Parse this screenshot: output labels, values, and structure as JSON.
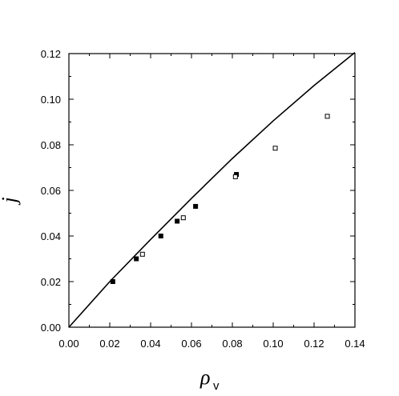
{
  "chart_data": {
    "type": "scatter",
    "title": "",
    "xlabel": "ρ",
    "xlabel_subscript": "v",
    "ylabel": "j",
    "xlim": [
      0.0,
      0.14
    ],
    "ylim": [
      0.0,
      0.12
    ],
    "x_ticks": [
      "0.00",
      "0.02",
      "0.04",
      "0.06",
      "0.08",
      "0.10",
      "0.12",
      "0.14"
    ],
    "y_ticks": [
      "0.00",
      "0.02",
      "0.04",
      "0.06",
      "0.08",
      "0.10",
      "0.12"
    ],
    "x_tick_values": [
      0.0,
      0.02,
      0.04,
      0.06,
      0.08,
      0.1,
      0.12,
      0.14
    ],
    "y_tick_values": [
      0.0,
      0.02,
      0.04,
      0.06,
      0.08,
      0.1,
      0.12
    ],
    "grid": false,
    "legend": "none",
    "series": [
      {
        "marker": "filled-square",
        "color": "#000000",
        "points": [
          {
            "x": 0.0215,
            "y": 0.02
          },
          {
            "x": 0.033,
            "y": 0.03
          },
          {
            "x": 0.045,
            "y": 0.04
          },
          {
            "x": 0.053,
            "y": 0.0465
          },
          {
            "x": 0.062,
            "y": 0.053
          },
          {
            "x": 0.082,
            "y": 0.067
          }
        ]
      },
      {
        "marker": "open-square",
        "color": "#000000",
        "points": [
          {
            "x": 0.036,
            "y": 0.032
          },
          {
            "x": 0.056,
            "y": 0.048
          },
          {
            "x": 0.0815,
            "y": 0.066
          },
          {
            "x": 0.101,
            "y": 0.0785
          },
          {
            "x": 0.1265,
            "y": 0.0925
          }
        ]
      },
      {
        "marker": "line",
        "color": "#000000",
        "points": [
          {
            "x": 0.0,
            "y": 0.0
          },
          {
            "x": 0.02,
            "y": 0.02
          },
          {
            "x": 0.04,
            "y": 0.0385
          },
          {
            "x": 0.06,
            "y": 0.0565
          },
          {
            "x": 0.08,
            "y": 0.074
          },
          {
            "x": 0.1,
            "y": 0.0905
          },
          {
            "x": 0.12,
            "y": 0.106
          },
          {
            "x": 0.14,
            "y": 0.1205
          }
        ]
      }
    ]
  }
}
